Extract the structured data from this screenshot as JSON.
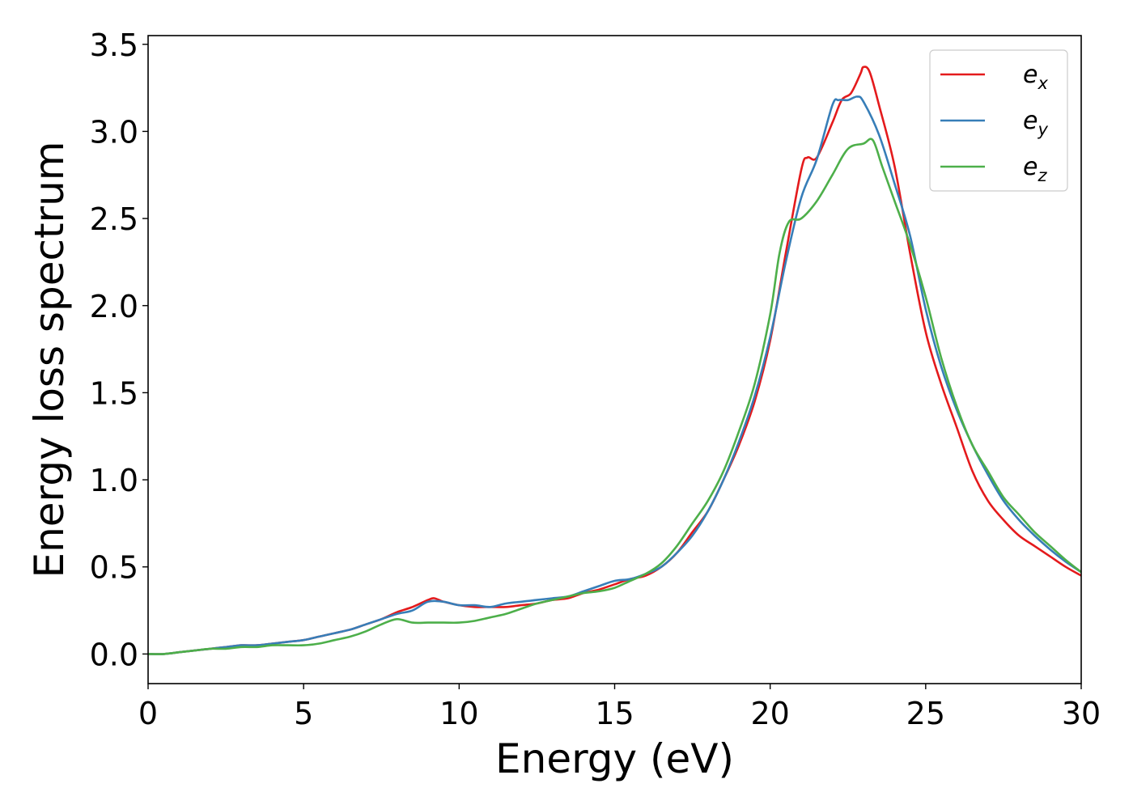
{
  "chart_data": {
    "type": "line",
    "xlabel": "Energy (eV)",
    "ylabel": "Energy loss spectrum",
    "xlim": [
      0,
      30
    ],
    "ylim": [
      -0.17,
      3.55
    ],
    "xticks": [
      "0",
      "5",
      "10",
      "15",
      "20",
      "25",
      "30"
    ],
    "yticks": [
      "0.0",
      "0.5",
      "1.0",
      "1.5",
      "2.0",
      "2.5",
      "3.0",
      "3.5"
    ],
    "grid": false,
    "legend_position": "top-right",
    "series": [
      {
        "name": "e_x",
        "label_base": "e",
        "label_sub": "x",
        "color": "#e41a1c",
        "x": [
          0,
          0.5,
          1,
          1.5,
          2,
          2.5,
          3,
          3.5,
          4,
          4.5,
          5,
          5.5,
          6,
          6.5,
          7,
          7.5,
          8,
          8.5,
          9,
          9.2,
          9.5,
          10,
          10.5,
          11,
          11.5,
          12,
          12.5,
          13,
          13.5,
          14,
          14.5,
          15,
          15.5,
          16,
          16.5,
          17,
          17.5,
          18,
          18.5,
          19,
          19.5,
          20,
          20.5,
          21,
          21.2,
          21.5,
          22,
          22.3,
          22.6,
          22.9,
          23,
          23.2,
          23.5,
          24,
          24.5,
          25,
          25.5,
          26,
          26.5,
          27,
          27.5,
          28,
          28.5,
          29,
          29.5,
          30
        ],
        "y": [
          0.0,
          0.0,
          0.01,
          0.02,
          0.03,
          0.04,
          0.05,
          0.05,
          0.06,
          0.07,
          0.08,
          0.1,
          0.12,
          0.14,
          0.17,
          0.2,
          0.24,
          0.27,
          0.31,
          0.32,
          0.3,
          0.28,
          0.27,
          0.27,
          0.27,
          0.28,
          0.29,
          0.31,
          0.32,
          0.35,
          0.37,
          0.4,
          0.43,
          0.45,
          0.5,
          0.58,
          0.7,
          0.82,
          1.0,
          1.2,
          1.45,
          1.8,
          2.3,
          2.78,
          2.85,
          2.85,
          3.05,
          3.18,
          3.22,
          3.33,
          3.37,
          3.34,
          3.15,
          2.8,
          2.3,
          1.85,
          1.55,
          1.3,
          1.05,
          0.88,
          0.77,
          0.68,
          0.62,
          0.56,
          0.5,
          0.45
        ]
      },
      {
        "name": "e_y",
        "label_base": "e",
        "label_sub": "y",
        "color": "#377eb8",
        "x": [
          0,
          0.5,
          1,
          1.5,
          2,
          2.5,
          3,
          3.5,
          4,
          4.5,
          5,
          5.5,
          6,
          6.5,
          7,
          7.5,
          8,
          8.5,
          9,
          9.5,
          10,
          10.5,
          11,
          11.5,
          12,
          12.5,
          13,
          13.5,
          14,
          14.5,
          15,
          15.5,
          16,
          16.5,
          17,
          17.5,
          18,
          18.5,
          19,
          19.5,
          20,
          20.5,
          21,
          21.5,
          22,
          22.2,
          22.5,
          22.8,
          23,
          23.5,
          24,
          24.5,
          25,
          25.5,
          26,
          26.5,
          27,
          27.5,
          28,
          28.5,
          29,
          29.5,
          30
        ],
        "y": [
          0.0,
          0.0,
          0.01,
          0.02,
          0.03,
          0.04,
          0.05,
          0.05,
          0.06,
          0.07,
          0.08,
          0.1,
          0.12,
          0.14,
          0.17,
          0.2,
          0.23,
          0.25,
          0.3,
          0.3,
          0.28,
          0.28,
          0.27,
          0.29,
          0.3,
          0.31,
          0.32,
          0.33,
          0.36,
          0.39,
          0.42,
          0.43,
          0.46,
          0.5,
          0.58,
          0.68,
          0.82,
          1.0,
          1.22,
          1.48,
          1.82,
          2.25,
          2.62,
          2.84,
          3.15,
          3.18,
          3.18,
          3.2,
          3.17,
          2.98,
          2.7,
          2.4,
          1.98,
          1.65,
          1.4,
          1.2,
          1.03,
          0.88,
          0.77,
          0.68,
          0.6,
          0.53,
          0.47
        ]
      },
      {
        "name": "e_z",
        "label_base": "e",
        "label_sub": "z",
        "color": "#4daf4a",
        "x": [
          0,
          0.5,
          1,
          1.5,
          2,
          2.5,
          3,
          3.5,
          4,
          4.5,
          5,
          5.5,
          6,
          6.5,
          7,
          7.5,
          8,
          8.5,
          9,
          9.5,
          10,
          10.5,
          11,
          11.5,
          12,
          12.5,
          13,
          13.5,
          14,
          14.5,
          15,
          15.5,
          16,
          16.5,
          17,
          17.5,
          18,
          18.5,
          19,
          19.5,
          20,
          20.3,
          20.6,
          21,
          21.5,
          22,
          22.5,
          23,
          23.3,
          23.6,
          24,
          24.5,
          25,
          25.5,
          26,
          26.5,
          27,
          27.5,
          28,
          28.5,
          29,
          29.5,
          30
        ],
        "y": [
          0.0,
          0.0,
          0.01,
          0.02,
          0.03,
          0.03,
          0.04,
          0.04,
          0.05,
          0.05,
          0.05,
          0.06,
          0.08,
          0.1,
          0.13,
          0.17,
          0.2,
          0.18,
          0.18,
          0.18,
          0.18,
          0.19,
          0.21,
          0.23,
          0.26,
          0.29,
          0.31,
          0.33,
          0.35,
          0.36,
          0.38,
          0.42,
          0.46,
          0.52,
          0.62,
          0.75,
          0.88,
          1.05,
          1.28,
          1.55,
          1.95,
          2.3,
          2.48,
          2.5,
          2.6,
          2.75,
          2.9,
          2.93,
          2.95,
          2.8,
          2.6,
          2.35,
          2.05,
          1.7,
          1.42,
          1.2,
          1.05,
          0.9,
          0.8,
          0.7,
          0.62,
          0.54,
          0.47
        ]
      }
    ]
  }
}
